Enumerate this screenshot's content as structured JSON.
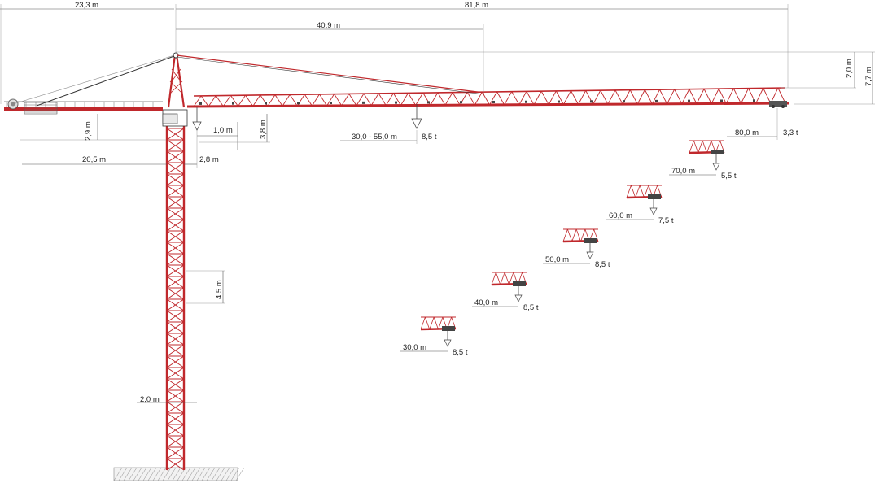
{
  "dimensions": {
    "counter_jib_length": "23,3 m",
    "jib_length": "81,8 m",
    "tie_point": "40,9 m",
    "apex_height": "2,0 m",
    "total_head_height": "7,7 m",
    "counter_jib_depth": "2,9 m",
    "jib_offset": "1,0 m",
    "jib_depth": "3,8 m",
    "counter_jib_span": "20,5 m",
    "slewing_width": "2,8 m",
    "mast_section": "4,5 m",
    "mast_width": "2,0 m"
  },
  "max_load": {
    "range": "30,0 - 55,0 m",
    "load": "8,5 t"
  },
  "tip_load": {
    "radius": "80,0 m",
    "load": "3,3 t"
  },
  "load_points": [
    {
      "radius": "70,0 m",
      "load": "5,5 t"
    },
    {
      "radius": "60,0 m",
      "load": "7,5 t"
    },
    {
      "radius": "50,0 m",
      "load": "8,5 t"
    },
    {
      "radius": "40,0 m",
      "load": "8,5 t"
    },
    {
      "radius": "30,0 m",
      "load": "8,5 t"
    }
  ],
  "colors": {
    "structure": "#c0282c",
    "dimension_lines": "#555555",
    "background": "#ffffff"
  }
}
